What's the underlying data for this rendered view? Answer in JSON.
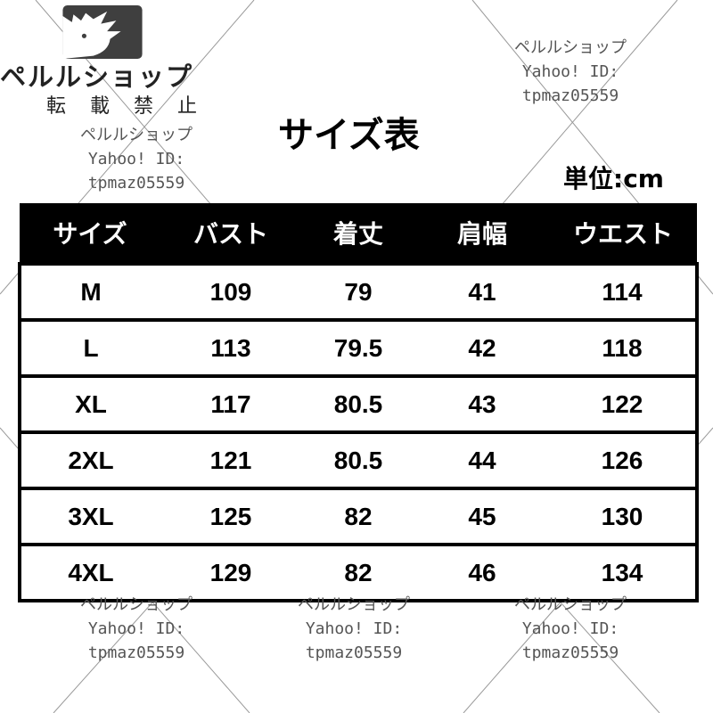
{
  "logo": {
    "brand": "ペルルショップ",
    "notice": "転 載 禁 止",
    "color": "#3f3f3f"
  },
  "title": "サイズ表",
  "unit": "単位:cm",
  "table": {
    "headers": [
      "サイズ",
      "バスト",
      "着丈",
      "肩幅",
      "ウエスト"
    ],
    "rows": [
      [
        "M",
        "109",
        "79",
        "41",
        "114"
      ],
      [
        "L",
        "113",
        "79.5",
        "42",
        "118"
      ],
      [
        "XL",
        "117",
        "80.5",
        "43",
        "122"
      ],
      [
        "2XL",
        "121",
        "80.5",
        "44",
        "126"
      ],
      [
        "3XL",
        "125",
        "82",
        "45",
        "130"
      ],
      [
        "4XL",
        "129",
        "82",
        "46",
        "134"
      ]
    ]
  },
  "watermark": {
    "shop": "ペルルショップ",
    "yahoo": "Yahoo! ID:",
    "id": "tpmaz05559"
  }
}
